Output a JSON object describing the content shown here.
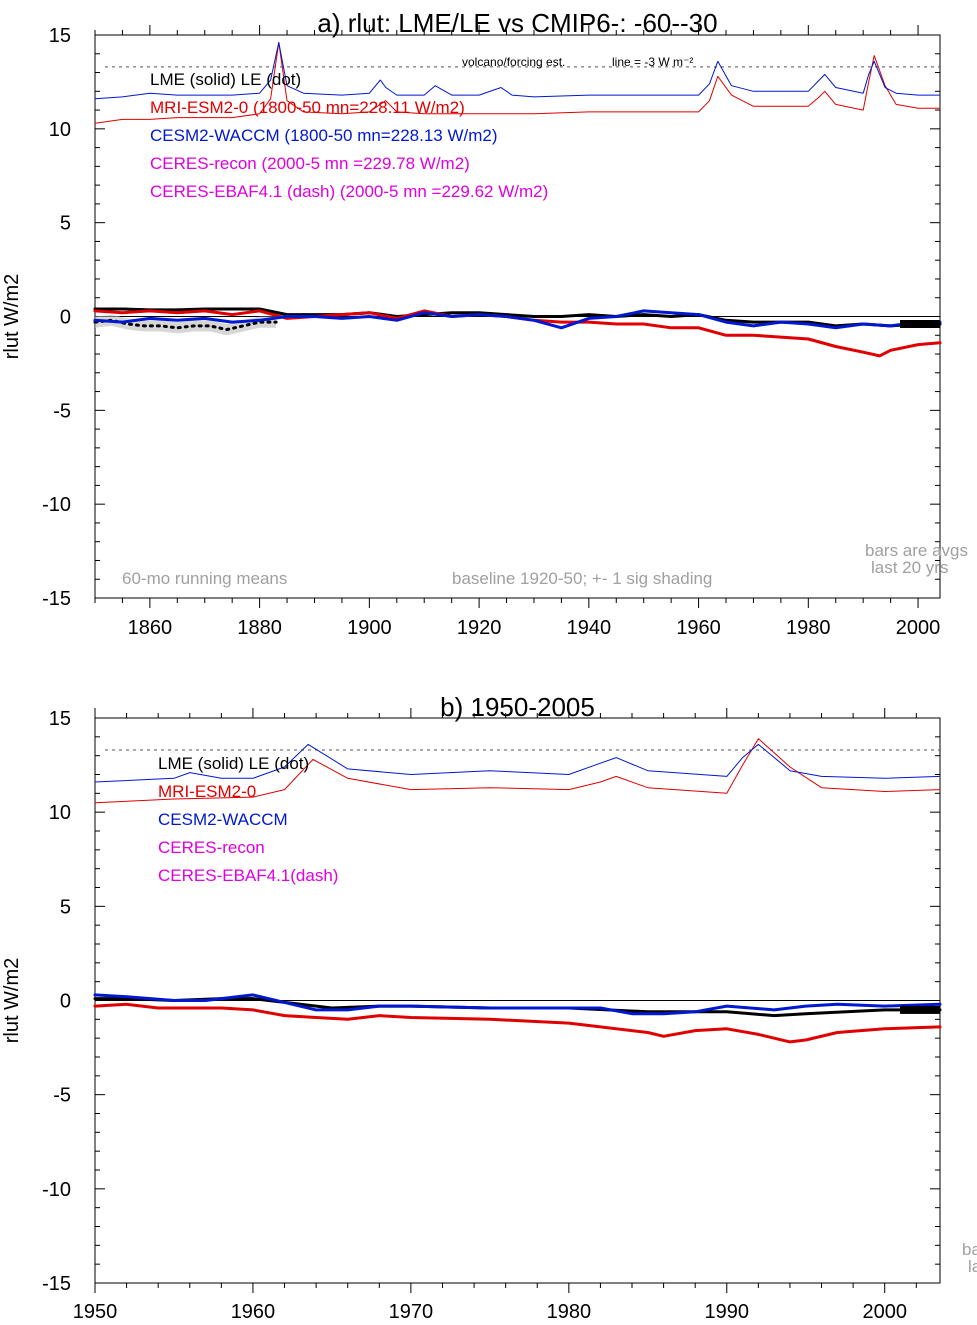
{
  "chart_data": [
    {
      "type": "line",
      "title": "a) rlut: LME/LE vs CMIP6-: -60--30",
      "ylabel": "rlut W/m2",
      "xlim": [
        1850,
        2004
      ],
      "ylim": [
        -15,
        15
      ],
      "x_ticks": [
        1860,
        1880,
        1900,
        1920,
        1940,
        1960,
        1980,
        2000
      ],
      "y_ticks": [
        15,
        10,
        5,
        0,
        -5,
        -10,
        -15
      ],
      "grid": false,
      "reference_line_y": -3,
      "legend_location": "top-left",
      "legend": [
        {
          "text": "LME (solid)   LE (dot)",
          "color": "#000000"
        },
        {
          "text": "MRI-ESM2-0 (1800-50 mn=228.11 W/m2)",
          "color": "#e00000"
        },
        {
          "text": "CESM2-WACCM (1800-50 mn=228.13 W/m2)",
          "color": "#0018d0"
        },
        {
          "text": "CERES-recon (2000-5 mn =229.78 W/m2)",
          "color": "#e000e0"
        },
        {
          "text": "CERES-EBAF4.1 (dash) (2000-5 mn =229.62 W/m2)",
          "color": "#e000e0"
        }
      ],
      "annotations": {
        "volcano": "volcano/forcing est.",
        "line": "line = -3 W m⁻²",
        "running": "60-mo running means",
        "baseline": "baseline 1920-50; +- 1 sig shading",
        "bars1": "bars are avgs",
        "bars2": "last 20 yrs"
      },
      "series": [
        {
          "name": "LME",
          "color": "#000000",
          "style": "solid",
          "x": [
            1850,
            1855,
            1860,
            1865,
            1870,
            1875,
            1880,
            1885,
            1890,
            1895,
            1900,
            1905,
            1910,
            1915,
            1920,
            1925,
            1930,
            1935,
            1940,
            1945,
            1950,
            1955,
            1960,
            1965,
            1970,
            1975,
            1980,
            1985,
            1990,
            1995,
            2000,
            2004
          ],
          "y": [
            0.4,
            0.4,
            0.35,
            0.35,
            0.4,
            0.4,
            0.4,
            0.1,
            0.1,
            0.1,
            0.2,
            0.0,
            0.1,
            0.2,
            0.2,
            0.1,
            0.0,
            0.0,
            0.1,
            0.0,
            0.1,
            0.0,
            0.1,
            -0.2,
            -0.3,
            -0.3,
            -0.3,
            -0.5,
            -0.4,
            -0.5,
            -0.4,
            -0.4
          ]
        },
        {
          "name": "LE",
          "color": "#000000",
          "style": "dot",
          "x": [
            1850,
            1853,
            1856,
            1859,
            1862,
            1865,
            1868,
            1871,
            1874,
            1877,
            1880,
            1883
          ],
          "y": [
            -0.3,
            -0.2,
            -0.4,
            -0.5,
            -0.5,
            -0.6,
            -0.5,
            -0.5,
            -0.7,
            -0.5,
            -0.3,
            -0.3
          ]
        },
        {
          "name": "MRI-ESM2-0",
          "color": "#e00000",
          "style": "solid",
          "x": [
            1850,
            1855,
            1860,
            1865,
            1870,
            1875,
            1880,
            1885,
            1890,
            1895,
            1900,
            1905,
            1910,
            1915,
            1920,
            1925,
            1930,
            1935,
            1940,
            1945,
            1950,
            1955,
            1960,
            1965,
            1970,
            1975,
            1980,
            1985,
            1990,
            1993,
            1995,
            2000,
            2004
          ],
          "y": [
            0.3,
            0.2,
            0.3,
            0.2,
            0.3,
            0.1,
            0.3,
            -0.1,
            0.0,
            0.1,
            0.2,
            -0.1,
            0.3,
            0.0,
            0.1,
            0.0,
            -0.2,
            -0.3,
            -0.3,
            -0.4,
            -0.4,
            -0.6,
            -0.6,
            -1.0,
            -1.0,
            -1.1,
            -1.2,
            -1.6,
            -1.9,
            -2.1,
            -1.8,
            -1.5,
            -1.4
          ]
        },
        {
          "name": "CESM2-WACCM",
          "color": "#0018d0",
          "style": "solid",
          "x": [
            1850,
            1855,
            1860,
            1865,
            1870,
            1875,
            1880,
            1885,
            1890,
            1895,
            1900,
            1905,
            1910,
            1915,
            1920,
            1925,
            1930,
            1935,
            1940,
            1945,
            1950,
            1955,
            1960,
            1965,
            1970,
            1975,
            1980,
            1985,
            1990,
            1995,
            2000,
            2004
          ],
          "y": [
            -0.2,
            -0.3,
            -0.1,
            -0.2,
            -0.1,
            -0.3,
            -0.2,
            0.0,
            0.0,
            -0.1,
            0.0,
            -0.2,
            0.2,
            0.0,
            0.1,
            0.0,
            -0.2,
            -0.6,
            -0.1,
            0.0,
            0.3,
            0.2,
            0.1,
            -0.3,
            -0.5,
            -0.3,
            -0.4,
            -0.6,
            -0.4,
            -0.5,
            -0.3,
            -0.3
          ]
        },
        {
          "name": "MRI-ESM2-0 forcing",
          "color": "#e00000",
          "style": "thin",
          "x": [
            1850,
            1855,
            1860,
            1865,
            1870,
            1875,
            1880,
            1882,
            1883.5,
            1885,
            1888,
            1895,
            1900,
            1902,
            1903,
            1905,
            1910,
            1920,
            1930,
            1940,
            1950,
            1955,
            1960,
            1962,
            1963.5,
            1966,
            1970,
            1975,
            1980,
            1982,
            1983,
            1985,
            1990,
            1991,
            1992,
            1994,
            1996,
            2000,
            2004
          ],
          "y": [
            10.3,
            10.5,
            10.5,
            10.6,
            10.6,
            10.6,
            10.8,
            11.6,
            14.6,
            11.5,
            10.9,
            10.8,
            10.9,
            11.3,
            11.5,
            10.9,
            10.8,
            10.8,
            10.8,
            10.9,
            10.9,
            10.9,
            10.9,
            11.5,
            12.8,
            11.8,
            11.2,
            11.2,
            11.2,
            11.7,
            12.0,
            11.3,
            11.0,
            12.5,
            13.9,
            12.3,
            11.3,
            11.1,
            11.1
          ]
        },
        {
          "name": "CESM2-WACCM forcing",
          "color": "#0018d0",
          "style": "thin",
          "x": [
            1850,
            1855,
            1860,
            1865,
            1870,
            1875,
            1880,
            1882,
            1883.5,
            1885,
            1888,
            1895,
            1900,
            1902,
            1903,
            1905,
            1910,
            1912,
            1915,
            1920,
            1924,
            1926,
            1930,
            1940,
            1950,
            1955,
            1960,
            1962,
            1963.5,
            1966,
            1970,
            1975,
            1980,
            1982,
            1983,
            1985,
            1990,
            1991,
            1992,
            1994,
            1996,
            2000,
            2004
          ],
          "y": [
            11.6,
            11.7,
            11.9,
            11.8,
            11.8,
            11.8,
            11.9,
            12.6,
            14.6,
            12.3,
            11.9,
            11.8,
            11.9,
            12.6,
            12.2,
            11.8,
            11.8,
            12.3,
            11.8,
            11.8,
            12.2,
            11.8,
            11.7,
            11.8,
            11.8,
            11.8,
            11.8,
            12.4,
            13.6,
            12.3,
            12.0,
            12.0,
            12.0,
            12.6,
            12.9,
            12.2,
            11.9,
            12.9,
            13.6,
            12.2,
            11.9,
            11.8,
            11.8
          ]
        }
      ]
    },
    {
      "type": "line",
      "title": "b) 1950-2005",
      "ylabel": "rlut W/m2",
      "xlim": [
        1950,
        2003.5
      ],
      "ylim": [
        -15,
        15
      ],
      "x_ticks": [
        1950,
        1960,
        1970,
        1980,
        1990,
        2000
      ],
      "y_ticks": [
        15,
        10,
        5,
        0,
        -5,
        -10,
        -15
      ],
      "grid": false,
      "reference_line_y": -3,
      "legend_location": "top-left",
      "legend": [
        {
          "text": "LME (solid)      LE (dot)",
          "color": "#000000"
        },
        {
          "text": "MRI-ESM2-0",
          "color": "#e00000"
        },
        {
          "text": "CESM2-WACCM",
          "color": "#0018d0"
        },
        {
          "text": "CERES-recon",
          "color": "#e000e0"
        },
        {
          "text": "CERES-EBAF4.1(dash)",
          "color": "#e000e0"
        }
      ],
      "annotations": {
        "bars1": "ba",
        "bars2": "la"
      },
      "series": [
        {
          "name": "LME",
          "color": "#000000",
          "style": "solid",
          "x": [
            1950,
            1952,
            1955,
            1958,
            1960,
            1962,
            1965,
            1968,
            1970,
            1975,
            1980,
            1985,
            1990,
            1993,
            1995,
            2000,
            2003.5
          ],
          "y": [
            0.1,
            0.1,
            0.0,
            0.1,
            0.1,
            -0.1,
            -0.4,
            -0.3,
            -0.3,
            -0.4,
            -0.4,
            -0.6,
            -0.6,
            -0.8,
            -0.7,
            -0.5,
            -0.5
          ]
        },
        {
          "name": "MRI-ESM2-0",
          "color": "#e00000",
          "style": "solid",
          "x": [
            1950,
            1952,
            1954,
            1958,
            1960,
            1962,
            1964,
            1966,
            1968,
            1970,
            1975,
            1980,
            1982,
            1985,
            1986,
            1988,
            1990,
            1992,
            1993,
            1994,
            1995,
            1997,
            2000,
            2003.5
          ],
          "y": [
            -0.3,
            -0.2,
            -0.4,
            -0.4,
            -0.5,
            -0.8,
            -0.9,
            -1.0,
            -0.8,
            -0.9,
            -1.0,
            -1.2,
            -1.4,
            -1.7,
            -1.9,
            -1.6,
            -1.5,
            -1.8,
            -2.0,
            -2.2,
            -2.1,
            -1.7,
            -1.5,
            -1.4
          ]
        },
        {
          "name": "CESM2-WACCM",
          "color": "#0018d0",
          "style": "solid",
          "x": [
            1950,
            1952,
            1955,
            1957,
            1960,
            1962,
            1964,
            1966,
            1968,
            1970,
            1975,
            1980,
            1982,
            1984,
            1986,
            1988,
            1990,
            1993,
            1995,
            1997,
            2000,
            2003.5
          ],
          "y": [
            0.3,
            0.2,
            0.0,
            0.0,
            0.3,
            -0.1,
            -0.5,
            -0.5,
            -0.3,
            -0.3,
            -0.4,
            -0.4,
            -0.4,
            -0.7,
            -0.7,
            -0.6,
            -0.3,
            -0.5,
            -0.3,
            -0.2,
            -0.3,
            -0.2
          ]
        },
        {
          "name": "MRI-ESM2-0 forcing",
          "color": "#e00000",
          "style": "thin",
          "x": [
            1950,
            1955,
            1960,
            1962,
            1963.8,
            1966,
            1970,
            1975,
            1980,
            1982,
            1983,
            1985,
            1990,
            1991,
            1992,
            1994,
            1996,
            2000,
            2003.5
          ],
          "y": [
            10.5,
            10.7,
            10.8,
            11.2,
            12.8,
            11.8,
            11.2,
            11.3,
            11.2,
            11.6,
            11.9,
            11.3,
            11.0,
            12.5,
            13.9,
            12.4,
            11.3,
            11.1,
            11.2
          ]
        },
        {
          "name": "CESM2-WACCM forcing",
          "color": "#0018d0",
          "style": "thin",
          "x": [
            1950,
            1955,
            1956,
            1958,
            1960,
            1962,
            1963.5,
            1966,
            1970,
            1975,
            1980,
            1982,
            1983,
            1985,
            1990,
            1991,
            1992,
            1994,
            1996,
            2000,
            2003.5
          ],
          "y": [
            11.6,
            11.8,
            12.1,
            11.8,
            11.8,
            12.4,
            13.6,
            12.3,
            12.0,
            12.2,
            12.0,
            12.6,
            12.9,
            12.2,
            11.9,
            12.9,
            13.6,
            12.2,
            11.9,
            11.8,
            11.9
          ]
        }
      ]
    }
  ]
}
